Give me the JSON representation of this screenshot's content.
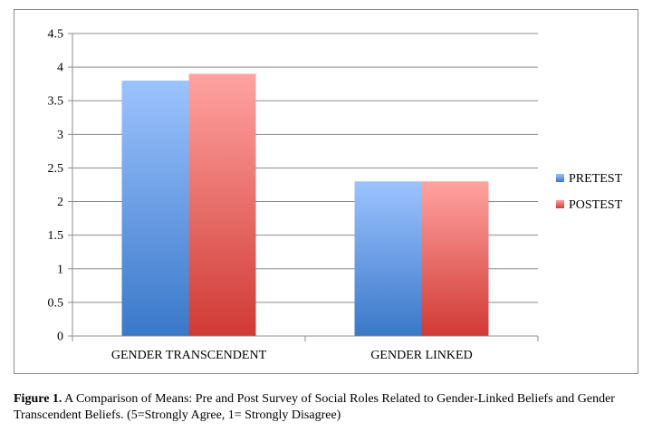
{
  "chart_data": {
    "type": "bar",
    "categories": [
      "GENDER TRANSCENDENT",
      "GENDER LINKED"
    ],
    "series": [
      {
        "name": "PRETEST",
        "values": [
          3.8,
          2.3
        ],
        "color_top": "#9cc3ff",
        "color_bottom": "#3a78c9"
      },
      {
        "name": "POSTEST",
        "values": [
          3.9,
          2.3
        ],
        "color_top": "#ffa3a0",
        "color_bottom": "#d03a35"
      }
    ],
    "ylim": [
      0,
      4.5
    ],
    "yticks": [
      "0",
      "0.5",
      "1",
      "1.5",
      "2",
      "2.5",
      "3",
      "3.5",
      "4",
      "4.5"
    ],
    "ytick_values": [
      0,
      0.5,
      1,
      1.5,
      2,
      2.5,
      3,
      3.5,
      4,
      4.5
    ],
    "grid": true,
    "legend": "right"
  },
  "caption": {
    "label": "Figure 1.",
    "text": " A Comparison of Means: Pre and Post Survey of Social Roles Related to Gender-Linked Beliefs and Gender Transcendent Beliefs. (5=Strongly Agree, 1= Strongly Disagree)"
  }
}
